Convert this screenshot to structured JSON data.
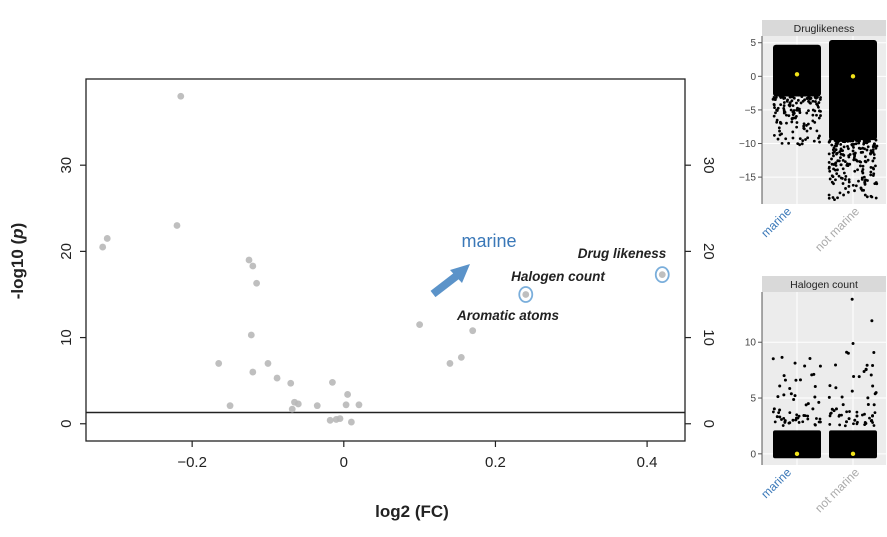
{
  "chart_data": [
    {
      "type": "scatter",
      "xlabel": "log2 (FC)",
      "ylabel_main": "-log10 (",
      "ylabel_italic": "p",
      "ylabel_close": ")",
      "xlim": [
        -0.34,
        0.45
      ],
      "ylim": [
        -2,
        40
      ],
      "xticks": [
        -0.2,
        0,
        0.2,
        0.4
      ],
      "xtick_labels": [
        "−0.2",
        "0",
        "0.2",
        "0.4"
      ],
      "yticks": [
        0,
        10,
        20,
        30
      ],
      "ytick_labels": [
        "0",
        "10",
        "20",
        "30"
      ],
      "threshold_y": 1.3,
      "points": [
        {
          "x": -0.215,
          "y": 38.0
        },
        {
          "x": -0.22,
          "y": 23.0
        },
        {
          "x": -0.312,
          "y": 21.5
        },
        {
          "x": -0.318,
          "y": 20.5
        },
        {
          "x": -0.125,
          "y": 19.0
        },
        {
          "x": -0.12,
          "y": 18.3
        },
        {
          "x": -0.115,
          "y": 16.3
        },
        {
          "x": -0.122,
          "y": 10.3
        },
        {
          "x": -0.1,
          "y": 7.0
        },
        {
          "x": -0.165,
          "y": 7.0
        },
        {
          "x": -0.12,
          "y": 6.0
        },
        {
          "x": -0.088,
          "y": 5.3
        },
        {
          "x": -0.07,
          "y": 4.7
        },
        {
          "x": -0.065,
          "y": 2.5
        },
        {
          "x": -0.06,
          "y": 2.3
        },
        {
          "x": -0.068,
          "y": 1.7
        },
        {
          "x": -0.15,
          "y": 2.1
        },
        {
          "x": -0.035,
          "y": 2.1
        },
        {
          "x": -0.015,
          "y": 4.8
        },
        {
          "x": 0.005,
          "y": 3.4
        },
        {
          "x": 0.003,
          "y": 2.2
        },
        {
          "x": 0.02,
          "y": 2.2
        },
        {
          "x": -0.01,
          "y": 0.5
        },
        {
          "x": -0.005,
          "y": 0.6
        },
        {
          "x": -0.018,
          "y": 0.4
        },
        {
          "x": 0.01,
          "y": 0.2
        },
        {
          "x": 0.1,
          "y": 11.5
        },
        {
          "x": 0.17,
          "y": 10.8
        },
        {
          "x": 0.155,
          "y": 7.7
        },
        {
          "x": 0.14,
          "y": 7.0
        },
        {
          "x": 0.24,
          "y": 15.0
        },
        {
          "x": 0.42,
          "y": 17.3
        }
      ],
      "highlighted": [
        {
          "x": 0.24,
          "y": 15.0
        },
        {
          "x": 0.42,
          "y": 17.3
        }
      ],
      "annotations": {
        "group": "marine",
        "drug": "Drug likeness",
        "halogen": "Halogen count",
        "aromatic": "Aromatic atoms"
      }
    },
    {
      "type": "scatter",
      "title": "Druglikeness",
      "categories": [
        "marine",
        "not marine"
      ],
      "ylim": [
        -19,
        6
      ],
      "yticks": [
        5,
        0,
        -5,
        -10,
        -15
      ],
      "ytick_labels": [
        "5",
        "0",
        "−5",
        "−10",
        "−15"
      ],
      "medians": [
        0.3,
        0.0
      ],
      "marine_range": [
        -10.5,
        4.7
      ],
      "not_marine_range": [
        -18.5,
        5.6
      ]
    },
    {
      "type": "scatter",
      "title": "Halogen count",
      "categories": [
        "marine",
        "not marine"
      ],
      "ylim": [
        -1,
        14.5
      ],
      "yticks": [
        10,
        5,
        0
      ],
      "ytick_labels": [
        "10",
        "5",
        "0"
      ],
      "medians": [
        0,
        0
      ],
      "marine_outliers": [
        3,
        3.3,
        4,
        4.5,
        5,
        5.3,
        6,
        6.5,
        7,
        8,
        8.5
      ],
      "not_marine_outliers": [
        3,
        3.3,
        4,
        4.5,
        5,
        5.5,
        6,
        7,
        7.5,
        8,
        9,
        10,
        12,
        14
      ]
    }
  ],
  "colors": {
    "marine": "#3a78b8",
    "not_marine": "#aaaaaa",
    "point": "#b8b8b8",
    "arrow": "#5b93c9",
    "highlight": "#7aaedb",
    "median": "#f2e31a",
    "panel_bg": "#ececec"
  }
}
